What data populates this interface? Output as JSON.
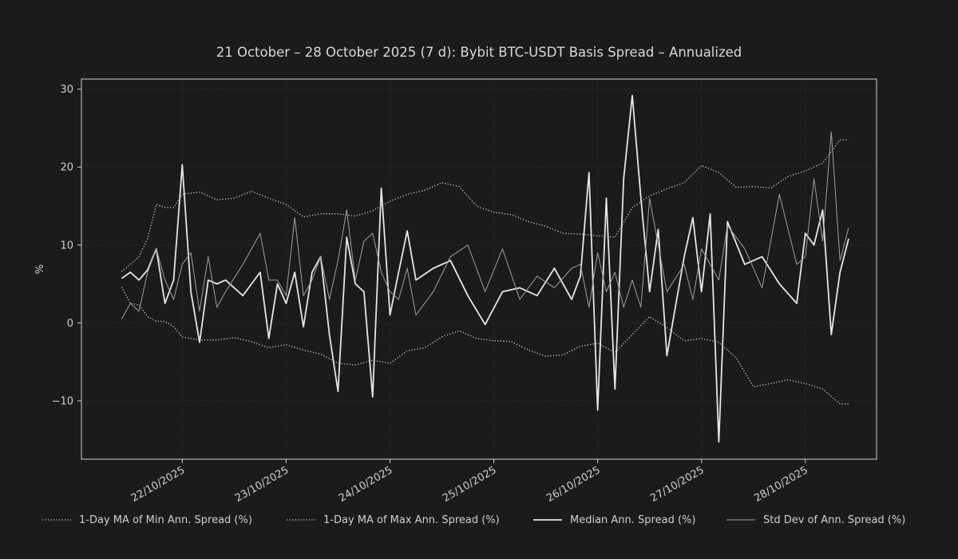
{
  "chart_data": {
    "type": "line",
    "title": "21 October – 28 October 2025 (7 d): Bybit BTC-USDT Basis Spread – Annualized",
    "xlabel": "",
    "ylabel": "%",
    "x_range": [
      "2025-10-21T09:00",
      "2025-10-28T10:00"
    ],
    "ylim": [
      -17.5,
      31.3
    ],
    "y_ticks": [
      -10,
      0,
      10,
      20,
      30
    ],
    "y_tick_labels": [
      "−10",
      "0",
      "10",
      "20",
      "30"
    ],
    "x_ticks": [
      "2025-10-22",
      "2025-10-23",
      "2025-10-24",
      "2025-10-25",
      "2025-10-26",
      "2025-10-27",
      "2025-10-28"
    ],
    "x_tick_labels": [
      "22/10/2025",
      "23/10/2025",
      "24/10/2025",
      "25/10/2025",
      "26/10/2025",
      "27/10/2025",
      "28/10/2025"
    ],
    "grid": true,
    "legend_position": "bottom",
    "series": [
      {
        "name": "1-Day MA of Min Ann. Spread (%)",
        "style": "dotted",
        "color": "#c8c8c8",
        "x": [
          "2025-10-21T10:00",
          "2025-10-21T12:00",
          "2025-10-21T14:00",
          "2025-10-21T16:00",
          "2025-10-21T18:00",
          "2025-10-21T20:00",
          "2025-10-21T22:00",
          "2025-10-22T00:00",
          "2025-10-22T04:00",
          "2025-10-22T08:00",
          "2025-10-22T12:00",
          "2025-10-22T16:00",
          "2025-10-22T20:00",
          "2025-10-23T00:00",
          "2025-10-23T04:00",
          "2025-10-23T08:00",
          "2025-10-23T12:00",
          "2025-10-23T16:00",
          "2025-10-23T20:00",
          "2025-10-24T00:00",
          "2025-10-24T04:00",
          "2025-10-24T08:00",
          "2025-10-24T12:00",
          "2025-10-24T16:00",
          "2025-10-24T20:00",
          "2025-10-25T00:00",
          "2025-10-25T04:00",
          "2025-10-25T08:00",
          "2025-10-25T12:00",
          "2025-10-25T16:00",
          "2025-10-25T20:00",
          "2025-10-26T00:00",
          "2025-10-26T04:00",
          "2025-10-26T08:00",
          "2025-10-26T12:00",
          "2025-10-26T16:00",
          "2025-10-26T20:00",
          "2025-10-27T00:00",
          "2025-10-27T04:00",
          "2025-10-27T08:00",
          "2025-10-27T12:00",
          "2025-10-27T16:00",
          "2025-10-27T20:00",
          "2025-10-28T00:00",
          "2025-10-28T04:00",
          "2025-10-28T08:00",
          "2025-10-28T10:00"
        ],
        "y": [
          4.6,
          2.5,
          2.3,
          0.8,
          0.2,
          0.2,
          -0.5,
          -1.8,
          -2.2,
          -2.2,
          -1.9,
          -2.4,
          -3.2,
          -2.8,
          -3.5,
          -4.0,
          -5.2,
          -5.4,
          -4.8,
          -5.2,
          -3.6,
          -3.2,
          -1.8,
          -1.0,
          -2.0,
          -2.3,
          -2.4,
          -3.5,
          -4.3,
          -4.1,
          -3.0,
          -2.6,
          -3.8,
          -1.5,
          0.8,
          -0.6,
          -2.3,
          -2.0,
          -2.5,
          -4.5,
          -8.2,
          -7.8,
          -7.3,
          -7.8,
          -8.5,
          -10.4,
          -10.4
        ]
      },
      {
        "name": "1-Day MA of Max Ann. Spread (%)",
        "style": "dotted",
        "color": "#c8c8c8",
        "x": [
          "2025-10-21T10:00",
          "2025-10-21T12:00",
          "2025-10-21T14:00",
          "2025-10-21T16:00",
          "2025-10-21T18:00",
          "2025-10-21T20:00",
          "2025-10-21T22:00",
          "2025-10-22T00:00",
          "2025-10-22T04:00",
          "2025-10-22T08:00",
          "2025-10-22T12:00",
          "2025-10-22T16:00",
          "2025-10-22T20:00",
          "2025-10-23T00:00",
          "2025-10-23T04:00",
          "2025-10-23T08:00",
          "2025-10-23T12:00",
          "2025-10-23T16:00",
          "2025-10-23T20:00",
          "2025-10-24T00:00",
          "2025-10-24T04:00",
          "2025-10-24T08:00",
          "2025-10-24T12:00",
          "2025-10-24T16:00",
          "2025-10-24T20:00",
          "2025-10-25T00:00",
          "2025-10-25T04:00",
          "2025-10-25T08:00",
          "2025-10-25T12:00",
          "2025-10-25T16:00",
          "2025-10-25T20:00",
          "2025-10-26T00:00",
          "2025-10-26T04:00",
          "2025-10-26T08:00",
          "2025-10-26T12:00",
          "2025-10-26T16:00",
          "2025-10-26T20:00",
          "2025-10-27T00:00",
          "2025-10-27T04:00",
          "2025-10-27T08:00",
          "2025-10-27T12:00",
          "2025-10-27T16:00",
          "2025-10-27T20:00",
          "2025-10-28T00:00",
          "2025-10-28T04:00",
          "2025-10-28T08:00",
          "2025-10-28T10:00"
        ],
        "y": [
          6.6,
          7.5,
          8.5,
          10.8,
          15.2,
          14.8,
          14.8,
          16.5,
          16.8,
          15.8,
          16.0,
          16.9,
          16.0,
          15.2,
          13.6,
          14.0,
          14.0,
          13.7,
          14.4,
          15.6,
          16.5,
          17.0,
          18.0,
          17.5,
          15.0,
          14.2,
          13.9,
          13.0,
          12.4,
          11.5,
          11.4,
          11.2,
          11.0,
          14.8,
          16.3,
          17.2,
          18.0,
          20.2,
          19.3,
          17.4,
          17.5,
          17.3,
          18.8,
          19.5,
          20.5,
          23.5,
          23.5
        ]
      },
      {
        "name": "Median Ann. Spread (%)",
        "style": "solid-thick",
        "color": "#e6e6e6",
        "x": [
          "2025-10-21T10:00",
          "2025-10-21T12:00",
          "2025-10-21T14:00",
          "2025-10-21T16:00",
          "2025-10-21T18:00",
          "2025-10-21T20:00",
          "2025-10-21T22:00",
          "2025-10-22T00:00",
          "2025-10-22T02:00",
          "2025-10-22T04:00",
          "2025-10-22T06:00",
          "2025-10-22T08:00",
          "2025-10-22T10:00",
          "2025-10-22T14:00",
          "2025-10-22T18:00",
          "2025-10-22T20:00",
          "2025-10-22T22:00",
          "2025-10-23T00:00",
          "2025-10-23T02:00",
          "2025-10-23T04:00",
          "2025-10-23T06:00",
          "2025-10-23T08:00",
          "2025-10-23T10:00",
          "2025-10-23T12:00",
          "2025-10-23T14:00",
          "2025-10-23T16:00",
          "2025-10-23T18:00",
          "2025-10-23T20:00",
          "2025-10-23T22:00",
          "2025-10-24T00:00",
          "2025-10-24T02:00",
          "2025-10-24T04:00",
          "2025-10-24T06:00",
          "2025-10-24T10:00",
          "2025-10-24T14:00",
          "2025-10-24T18:00",
          "2025-10-24T22:00",
          "2025-10-25T02:00",
          "2025-10-25T06:00",
          "2025-10-25T10:00",
          "2025-10-25T14:00",
          "2025-10-25T18:00",
          "2025-10-25T20:00",
          "2025-10-25T22:00",
          "2025-10-26T00:00",
          "2025-10-26T02:00",
          "2025-10-26T04:00",
          "2025-10-26T06:00",
          "2025-10-26T08:00",
          "2025-10-26T10:00",
          "2025-10-26T12:00",
          "2025-10-26T14:00",
          "2025-10-26T16:00",
          "2025-10-26T20:00",
          "2025-10-26T22:00",
          "2025-10-27T00:00",
          "2025-10-27T02:00",
          "2025-10-27T04:00",
          "2025-10-27T06:00",
          "2025-10-27T10:00",
          "2025-10-27T14:00",
          "2025-10-27T18:00",
          "2025-10-27T22:00",
          "2025-10-28T00:00",
          "2025-10-28T02:00",
          "2025-10-28T04:00",
          "2025-10-28T06:00",
          "2025-10-28T08:00",
          "2025-10-28T10:00"
        ],
        "y": [
          5.7,
          6.5,
          5.5,
          6.8,
          9.5,
          2.5,
          5.5,
          20.3,
          4.0,
          -2.5,
          5.5,
          5.0,
          5.5,
          3.5,
          6.5,
          -2.0,
          5.0,
          2.5,
          6.5,
          -0.5,
          6.5,
          8.5,
          -1.5,
          -8.8,
          11.0,
          5.0,
          4.0,
          -9.5,
          17.3,
          1.0,
          6.5,
          11.8,
          5.5,
          7.0,
          8.0,
          3.5,
          -0.2,
          4.0,
          4.5,
          3.5,
          7.0,
          3.0,
          6.0,
          19.3,
          -11.2,
          16.0,
          -8.5,
          18.5,
          29.2,
          16.0,
          4.0,
          12.0,
          -4.2,
          8.5,
          13.5,
          4.0,
          14.0,
          -15.3,
          13.0,
          7.5,
          8.5,
          5.0,
          2.5,
          11.5,
          10.0,
          14.5,
          -1.5,
          6.5,
          10.8
        ]
      },
      {
        "name": "Std Dev of Ann. Spread (%)",
        "style": "solid-thin",
        "color": "#a0a0a0",
        "x": [
          "2025-10-21T10:00",
          "2025-10-21T12:00",
          "2025-10-21T14:00",
          "2025-10-21T16:00",
          "2025-10-21T18:00",
          "2025-10-21T20:00",
          "2025-10-21T22:00",
          "2025-10-22T00:00",
          "2025-10-22T02:00",
          "2025-10-22T04:00",
          "2025-10-22T06:00",
          "2025-10-22T08:00",
          "2025-10-22T10:00",
          "2025-10-22T14:00",
          "2025-10-22T18:00",
          "2025-10-22T20:00",
          "2025-10-22T22:00",
          "2025-10-23T00:00",
          "2025-10-23T02:00",
          "2025-10-23T04:00",
          "2025-10-23T06:00",
          "2025-10-23T08:00",
          "2025-10-23T10:00",
          "2025-10-23T12:00",
          "2025-10-23T14:00",
          "2025-10-23T16:00",
          "2025-10-23T18:00",
          "2025-10-23T20:00",
          "2025-10-23T22:00",
          "2025-10-24T00:00",
          "2025-10-24T02:00",
          "2025-10-24T04:00",
          "2025-10-24T06:00",
          "2025-10-24T10:00",
          "2025-10-24T14:00",
          "2025-10-24T18:00",
          "2025-10-24T22:00",
          "2025-10-25T02:00",
          "2025-10-25T06:00",
          "2025-10-25T10:00",
          "2025-10-25T14:00",
          "2025-10-25T18:00",
          "2025-10-25T20:00",
          "2025-10-25T22:00",
          "2025-10-26T00:00",
          "2025-10-26T02:00",
          "2025-10-26T04:00",
          "2025-10-26T06:00",
          "2025-10-26T08:00",
          "2025-10-26T10:00",
          "2025-10-26T12:00",
          "2025-10-26T14:00",
          "2025-10-26T16:00",
          "2025-10-26T20:00",
          "2025-10-26T22:00",
          "2025-10-27T00:00",
          "2025-10-27T02:00",
          "2025-10-27T04:00",
          "2025-10-27T06:00",
          "2025-10-27T10:00",
          "2025-10-27T14:00",
          "2025-10-27T18:00",
          "2025-10-27T22:00",
          "2025-10-28T00:00",
          "2025-10-28T02:00",
          "2025-10-28T04:00",
          "2025-10-28T06:00",
          "2025-10-28T08:00",
          "2025-10-28T10:00"
        ],
        "y": [
          0.5,
          2.5,
          1.5,
          6.5,
          9.5,
          5.5,
          3.0,
          7.5,
          9.0,
          1.5,
          8.5,
          2.0,
          4.0,
          7.5,
          11.5,
          5.5,
          5.5,
          3.5,
          13.5,
          3.5,
          5.5,
          8.5,
          3.0,
          8.0,
          14.5,
          5.5,
          10.5,
          11.5,
          6.5,
          4.0,
          3.0,
          7.0,
          1.0,
          4.0,
          8.5,
          10.0,
          4.0,
          9.5,
          3.0,
          6.0,
          4.5,
          7.0,
          7.5,
          2.0,
          9.0,
          4.0,
          6.5,
          2.0,
          5.5,
          2.0,
          16.0,
          10.0,
          4.0,
          7.5,
          3.0,
          9.5,
          7.5,
          5.5,
          12.5,
          9.5,
          4.5,
          16.5,
          7.5,
          8.5,
          18.5,
          10.5,
          24.5,
          8.0,
          12.2
        ]
      }
    ]
  }
}
